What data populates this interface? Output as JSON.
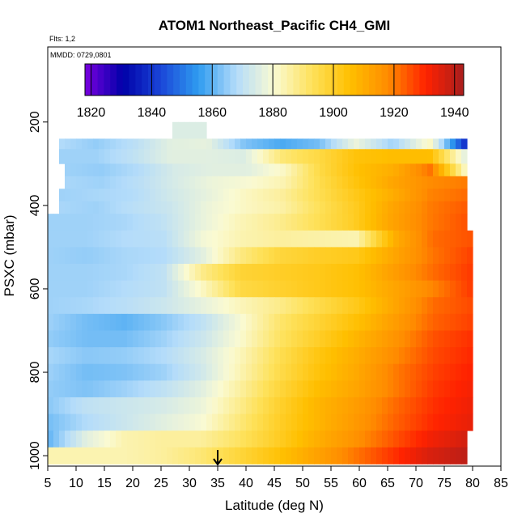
{
  "chart_data": {
    "type": "heatmap",
    "title": "ATOM1 Northeast_Pacific CH4_GMI",
    "annotations": [
      "Flts: 1,2",
      "MMDD: 0729,0801"
    ],
    "xlabel": "Latitude (deg N)",
    "ylabel": "PSXC (mbar)",
    "xlim": [
      5,
      85
    ],
    "ylim": [
      1025,
      20
    ],
    "y_reversed": true,
    "x_ticks": [
      5,
      10,
      15,
      20,
      25,
      30,
      35,
      40,
      45,
      50,
      55,
      60,
      65,
      70,
      75,
      80,
      85
    ],
    "y_ticks": [
      200,
      400,
      600,
      800,
      1000
    ],
    "colorbar": {
      "range": [
        1818,
        1943
      ],
      "ticks": [
        1820,
        1840,
        1860,
        1880,
        1900,
        1920,
        1940
      ],
      "colors": [
        "#7a00e0",
        "#0000a8",
        "#1a46d8",
        "#2f9cf0",
        "#b4dcfa",
        "#fafad2",
        "#fee15a",
        "#ffbf00",
        "#ff8c00",
        "#ff2200",
        "#a81e1e"
      ]
    },
    "marker_latitude": 35,
    "layers": [
      {
        "p": [
          200,
          240
        ],
        "lat": [
          27,
          33
        ],
        "values": [
          1875
        ]
      },
      {
        "p": [
          240,
          265
        ],
        "lat": [
          7,
          79
        ],
        "values": [
          1868,
          1865,
          1869,
          1876,
          1877,
          1863,
          1858,
          1862,
          1878,
          1866,
          1882,
          1837
        ]
      },
      {
        "p": [
          265,
          300
        ],
        "lat": [
          7,
          79
        ],
        "values": [
          1866,
          1866,
          1870,
          1876,
          1876,
          1875,
          1890,
          1896,
          1904,
          1906,
          1906,
          1875
        ]
      },
      {
        "p": [
          300,
          330
        ],
        "lat": [
          8,
          79
        ],
        "values": [
          1866,
          1865,
          1868,
          1874,
          1876,
          1876,
          1882,
          1896,
          1905,
          1910,
          1921,
          1880
        ]
      },
      {
        "p": [
          330,
          360
        ],
        "lat": [
          8,
          79
        ],
        "values": [
          1867,
          1866,
          1869,
          1874,
          1878,
          1880,
          1884,
          1895,
          1904,
          1912,
          1918,
          1920
        ]
      },
      {
        "p": [
          360,
          390
        ],
        "lat": [
          7,
          79
        ],
        "values": [
          1866,
          1867,
          1868,
          1873,
          1877,
          1882,
          1886,
          1894,
          1902,
          1910,
          1919,
          1922
        ]
      },
      {
        "p": [
          390,
          420
        ],
        "lat": [
          7,
          79
        ],
        "values": [
          1867,
          1866,
          1869,
          1872,
          1878,
          1882,
          1885,
          1893,
          1901,
          1912,
          1920,
          1924
        ]
      },
      {
        "p": [
          420,
          460
        ],
        "lat": [
          5,
          79
        ],
        "values": [
          1866,
          1866,
          1867,
          1870,
          1877,
          1883,
          1887,
          1893,
          1900,
          1912,
          1920,
          1925
        ]
      },
      {
        "p": [
          460,
          500
        ],
        "lat": [
          5,
          80
        ],
        "values": [
          1866,
          1866,
          1868,
          1869,
          1879,
          1884,
          1886,
          1885,
          1884,
          1910,
          1922,
          1925
        ]
      },
      {
        "p": [
          500,
          540
        ],
        "lat": [
          5,
          80
        ],
        "values": [
          1866,
          1865,
          1867,
          1868,
          1876,
          1889,
          1897,
          1900,
          1902,
          1912,
          1921,
          1927
        ]
      },
      {
        "p": [
          540,
          580
        ],
        "lat": [
          5,
          80
        ],
        "values": [
          1866,
          1866,
          1867,
          1870,
          1888,
          1898,
          1900,
          1902,
          1905,
          1914,
          1922,
          1928
        ]
      },
      {
        "p": [
          580,
          620
        ],
        "lat": [
          5,
          80
        ],
        "values": [
          1866,
          1866,
          1868,
          1870,
          1882,
          1896,
          1899,
          1902,
          1905,
          1912,
          1919,
          1928
        ]
      },
      {
        "p": [
          620,
          660
        ],
        "lat": [
          5,
          80
        ],
        "values": [
          1866,
          1867,
          1869,
          1872,
          1877,
          1883,
          1888,
          1895,
          1902,
          1912,
          1922,
          1926
        ]
      },
      {
        "p": [
          660,
          700
        ],
        "lat": [
          5,
          80
        ],
        "values": [
          1866,
          1862,
          1860,
          1864,
          1870,
          1880,
          1891,
          1898,
          1905,
          1914,
          1923,
          1927
        ]
      },
      {
        "p": [
          700,
          740
        ],
        "lat": [
          5,
          80
        ],
        "values": [
          1865,
          1862,
          1862,
          1866,
          1872,
          1881,
          1892,
          1900,
          1908,
          1916,
          1925,
          1929
        ]
      },
      {
        "p": [
          740,
          780
        ],
        "lat": [
          5,
          80
        ],
        "values": [
          1867,
          1864,
          1865,
          1868,
          1874,
          1883,
          1894,
          1903,
          1910,
          1918,
          1926,
          1930
        ]
      },
      {
        "p": [
          780,
          820
        ],
        "lat": [
          5,
          80
        ],
        "values": [
          1866,
          1862,
          1863,
          1866,
          1873,
          1884,
          1895,
          1904,
          1911,
          1920,
          1927,
          1931
        ]
      },
      {
        "p": [
          820,
          860
        ],
        "lat": [
          5,
          80
        ],
        "values": [
          1865,
          1863,
          1866,
          1870,
          1876,
          1886,
          1897,
          1906,
          1912,
          1920,
          1928,
          1932
        ]
      },
      {
        "p": [
          860,
          900
        ],
        "lat": [
          5,
          80
        ],
        "values": [
          1864,
          1870,
          1872,
          1874,
          1878,
          1888,
          1899,
          1908,
          1914,
          1922,
          1929,
          1933
        ]
      },
      {
        "p": [
          900,
          940
        ],
        "lat": [
          5,
          80
        ],
        "values": [
          1862,
          1868,
          1872,
          1876,
          1880,
          1890,
          1900,
          1908,
          1915,
          1923,
          1930,
          1934
        ]
      },
      {
        "p": [
          940,
          980
        ],
        "lat": [
          5,
          79
        ],
        "values": [
          1860,
          1876,
          1884,
          1886,
          1886,
          1892,
          1900,
          1909,
          1916,
          1924,
          1932,
          1937
        ]
      },
      {
        "p": [
          980,
          1020
        ],
        "lat": [
          5,
          79
        ],
        "values": [
          1884,
          1884,
          1884,
          1886,
          1890,
          1897,
          1904,
          1912,
          1920,
          1928,
          1936,
          1940
        ]
      }
    ]
  }
}
